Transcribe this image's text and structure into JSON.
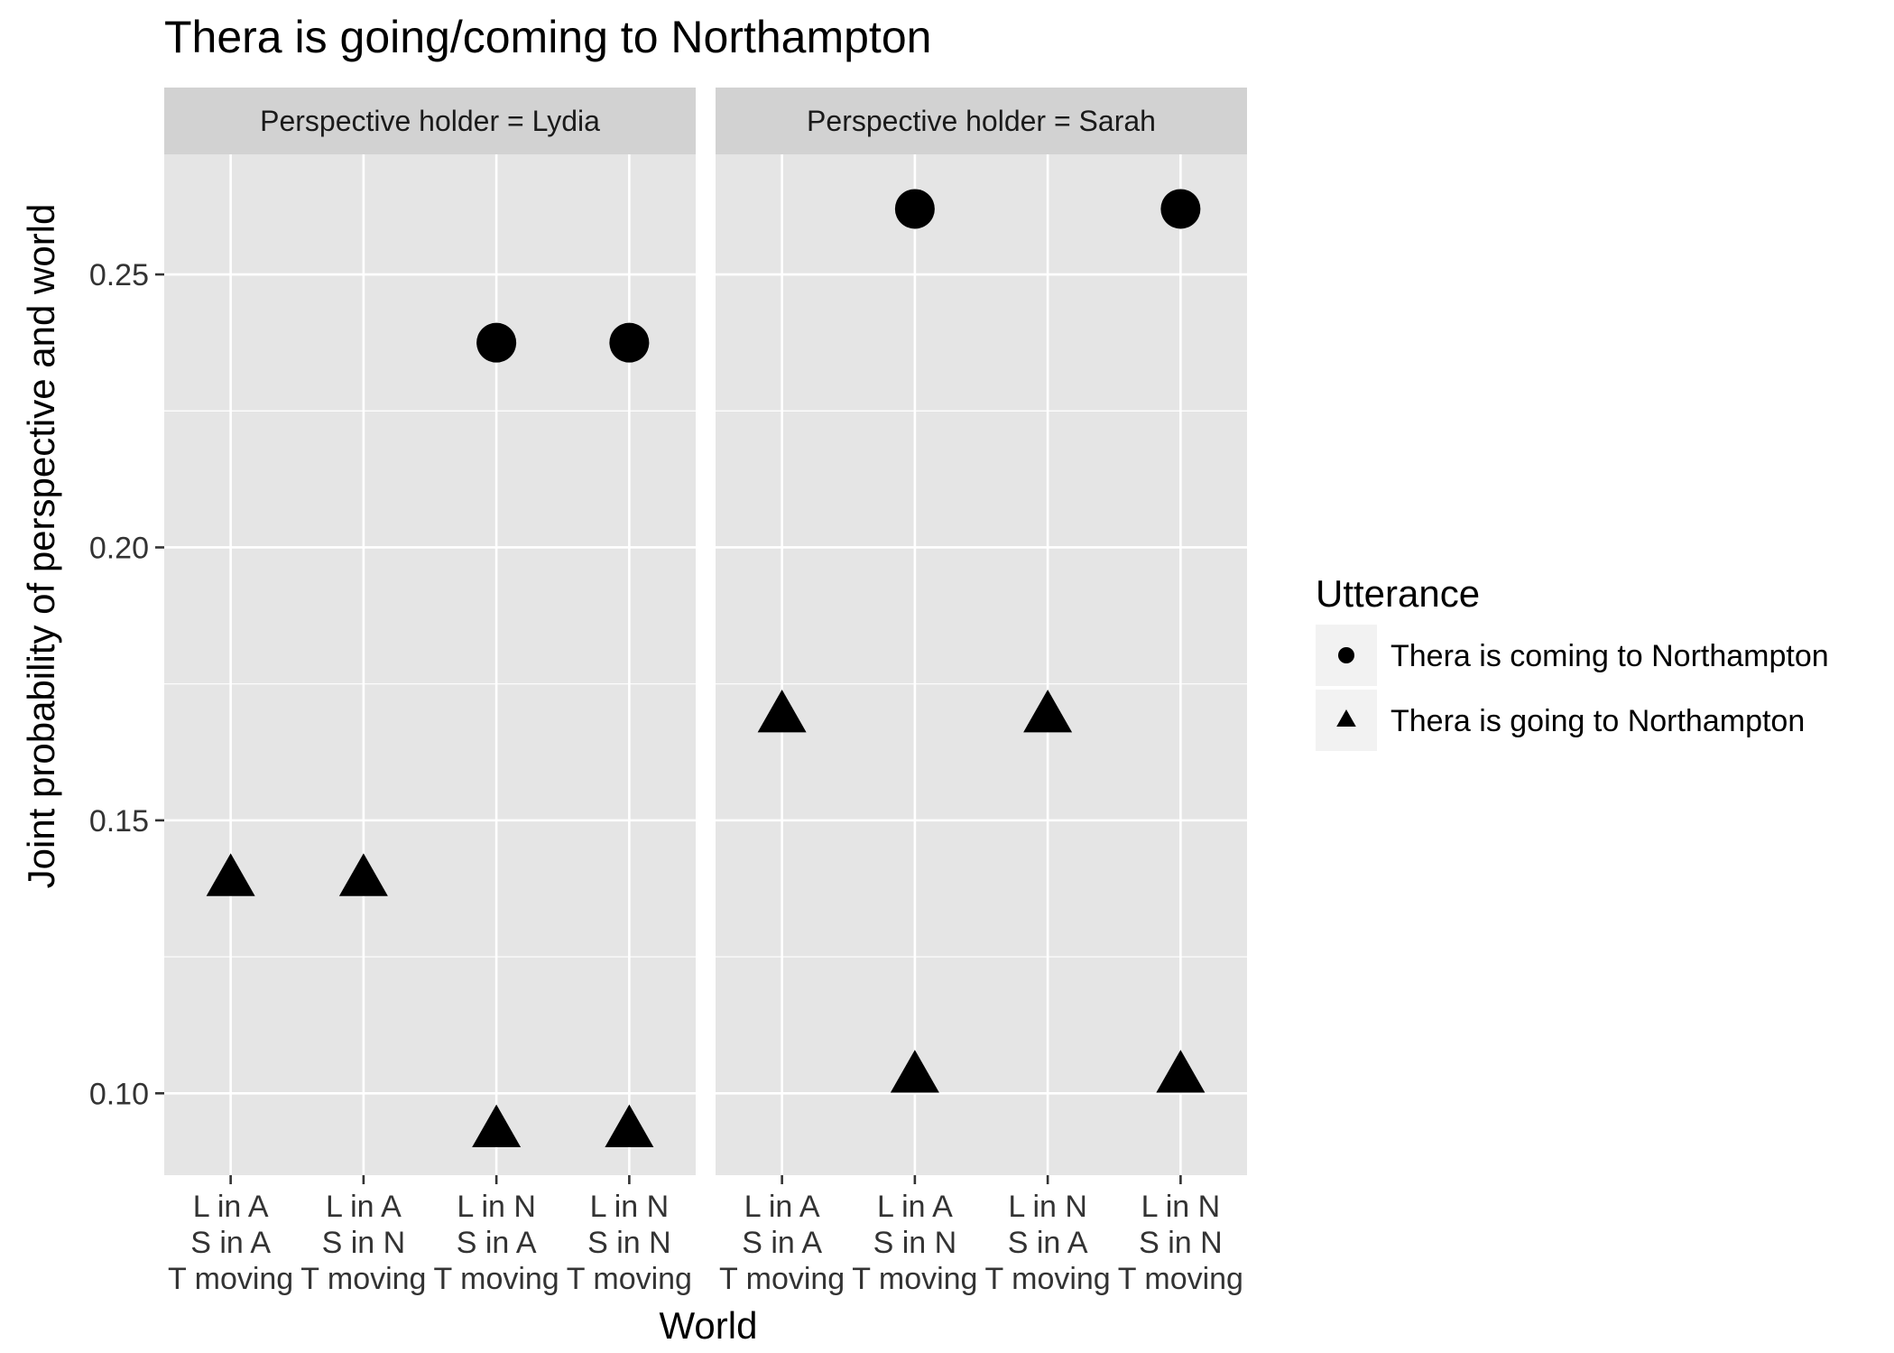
{
  "chart_data": {
    "type": "scatter",
    "title": "Thera is going/coming to Northampton",
    "xlabel": "World",
    "ylabel": "Joint probability of perspective and world",
    "ylim": [
      0.085,
      0.272
    ],
    "yticks": [
      "0.10",
      "0.15",
      "0.20",
      "0.25"
    ],
    "ytick_values": [
      0.1,
      0.15,
      0.2,
      0.25
    ],
    "categories": [
      [
        "L in A",
        "S in A",
        "T moving"
      ],
      [
        "L in A",
        "S in N",
        "T moving"
      ],
      [
        "L in N",
        "S in A",
        "T moving"
      ],
      [
        "L in N",
        "S in N",
        "T moving"
      ]
    ],
    "panels": [
      {
        "strip": "Perspective holder = Lydia",
        "series": [
          {
            "name": "Thera is coming to Northampton",
            "shape": "circle",
            "values": [
              null,
              null,
              0.2375,
              0.2375
            ]
          },
          {
            "name": "Thera is going to Northampton",
            "shape": "triangle",
            "values": [
              0.139,
              0.139,
              0.093,
              0.093
            ]
          }
        ]
      },
      {
        "strip": "Perspective holder = Sarah",
        "series": [
          {
            "name": "Thera is coming to Northampton",
            "shape": "circle",
            "values": [
              null,
              0.262,
              null,
              0.262
            ]
          },
          {
            "name": "Thera is going to Northampton",
            "shape": "triangle",
            "values": [
              0.169,
              0.103,
              0.169,
              0.103
            ]
          }
        ]
      }
    ],
    "legend": {
      "title": "Utterance",
      "position": "right",
      "items": [
        {
          "label": "Thera is coming to Northampton",
          "shape": "circle"
        },
        {
          "label": "Thera is going to Northampton",
          "shape": "triangle"
        }
      ]
    },
    "grid": true,
    "colors": {
      "panel_bg": "#e5e5e5",
      "strip_bg": "#d2d2d2",
      "grid": "#ffffff",
      "point": "#000000",
      "text": "#333333"
    }
  }
}
